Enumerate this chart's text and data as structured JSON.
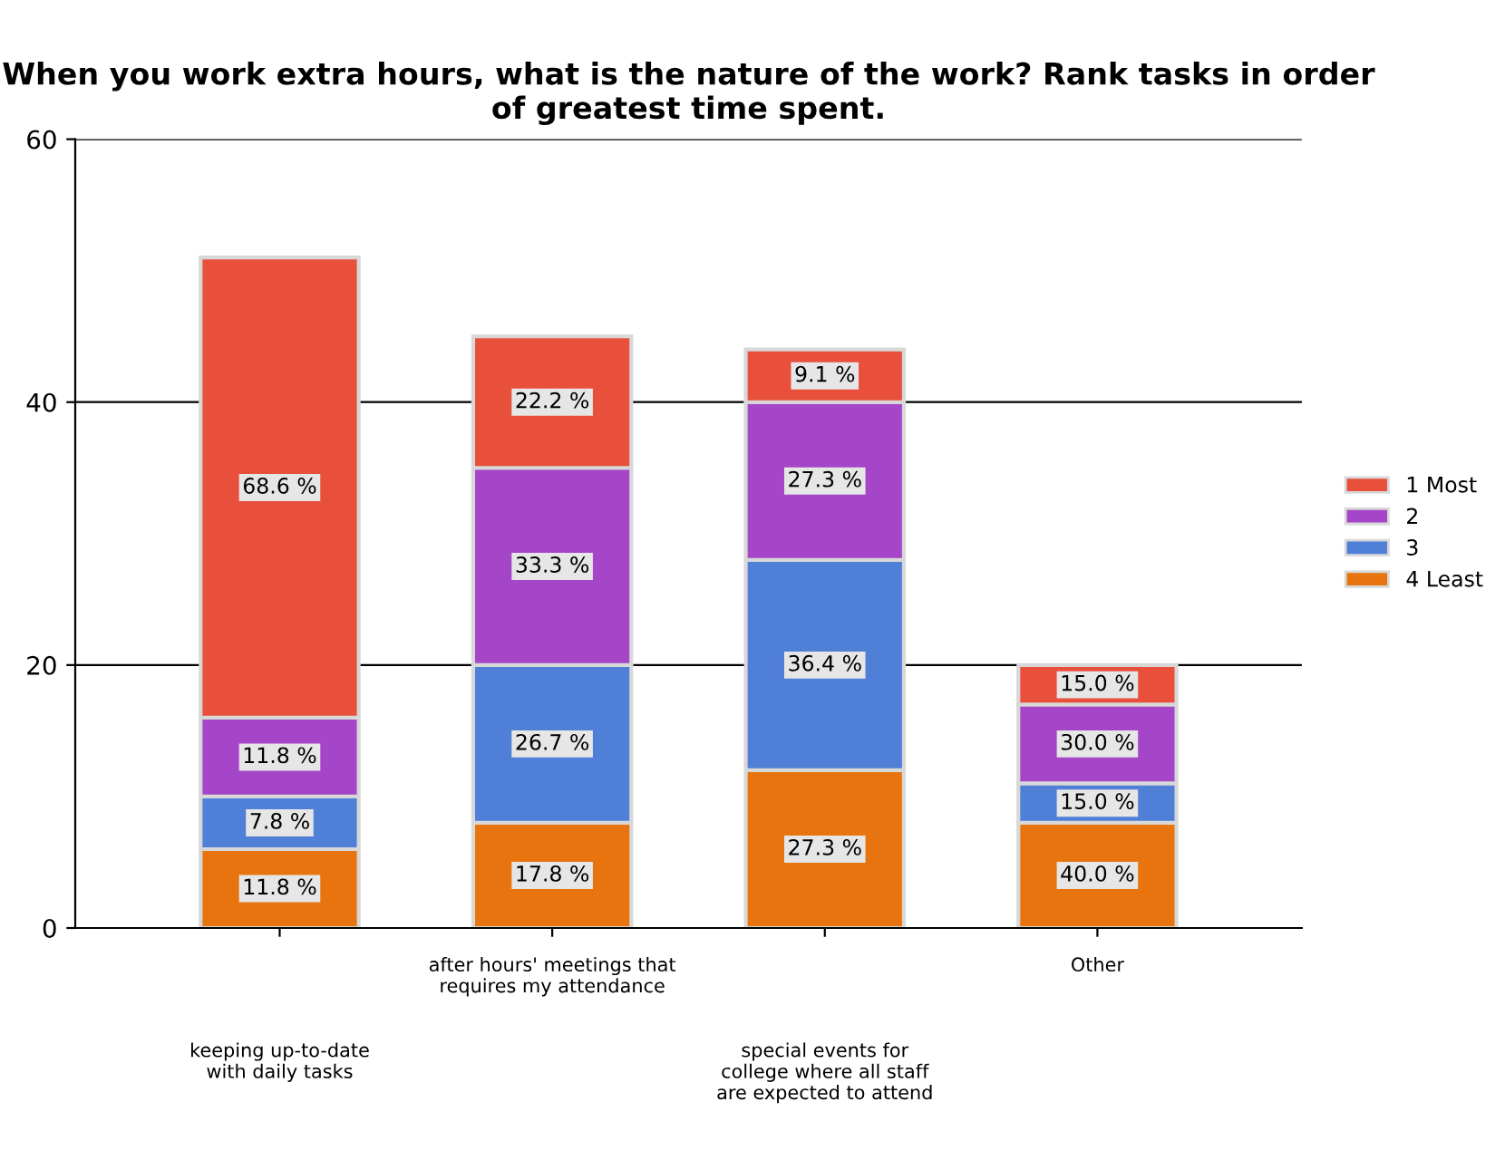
{
  "chart_data": {
    "type": "bar",
    "stacked": true,
    "title": "When you work extra hours, what is the nature of the work? Rank tasks in order of greatest time spent.",
    "categories": [
      "keeping up-to-date\nwith daily tasks",
      "after hours' meetings that\nrequires my attendance",
      "special events for\ncollege where all staff\nare expected to attend",
      "Other"
    ],
    "series": [
      {
        "name": "4 Least",
        "color": "#e8740f",
        "values": [
          6,
          8,
          12,
          8
        ]
      },
      {
        "name": "3",
        "color": "#4f7fd6",
        "values": [
          4,
          12,
          16,
          3
        ]
      },
      {
        "name": "2",
        "color": "#a545c8",
        "values": [
          6,
          15,
          12,
          6
        ]
      },
      {
        "name": "1 Most",
        "color": "#e8503c",
        "values": [
          35,
          10,
          4,
          3
        ]
      }
    ],
    "annotations": [
      "11.8 %",
      "7.8 %",
      "11.8 %",
      "68.6 %",
      "17.8 %",
      "26.7 %",
      "33.3 %",
      "22.2 %",
      "27.3 %",
      "36.4 %",
      "27.3 %",
      "9.1 %",
      "40.0 %",
      "15.0 %",
      "30.0 %",
      "15.0 %"
    ],
    "ylim": [
      0,
      60
    ],
    "yticks": [
      0,
      20,
      40,
      60
    ],
    "grid": "y",
    "legend": "right"
  }
}
